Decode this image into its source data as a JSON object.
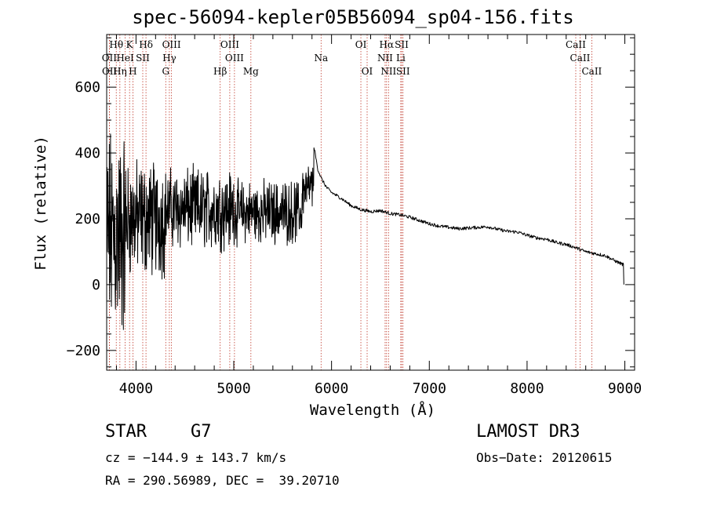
{
  "chart_data": {
    "type": "line",
    "title": "spec-56094-kepler05B56094_sp04-156.fits",
    "xlabel": "Wavelength (Å)",
    "ylabel": "Flux (relative)",
    "xlim": [
      3700,
      9100
    ],
    "ylim": [
      -260,
      760
    ],
    "xticks": [
      4000,
      5000,
      6000,
      7000,
      8000,
      9000
    ],
    "yticks": [
      -200,
      0,
      200,
      400,
      600
    ],
    "continuum": [
      [
        5820,
        420
      ],
      [
        5860,
        350
      ],
      [
        5900,
        320
      ],
      [
        5950,
        295
      ],
      [
        6000,
        280
      ],
      [
        6100,
        262
      ],
      [
        6200,
        240
      ],
      [
        6300,
        228
      ],
      [
        6400,
        222
      ],
      [
        6500,
        225
      ],
      [
        6600,
        216
      ],
      [
        6700,
        212
      ],
      [
        6800,
        205
      ],
      [
        6900,
        195
      ],
      [
        7000,
        185
      ],
      [
        7100,
        178
      ],
      [
        7200,
        174
      ],
      [
        7300,
        170
      ],
      [
        7400,
        172
      ],
      [
        7500,
        174
      ],
      [
        7600,
        176
      ],
      [
        7700,
        168
      ],
      [
        7800,
        162
      ],
      [
        7900,
        160
      ],
      [
        8000,
        150
      ],
      [
        8100,
        142
      ],
      [
        8200,
        138
      ],
      [
        8300,
        128
      ],
      [
        8400,
        122
      ],
      [
        8500,
        112
      ],
      [
        8600,
        100
      ],
      [
        8700,
        94
      ],
      [
        8800,
        88
      ],
      [
        8900,
        72
      ],
      [
        8990,
        60
      ]
    ],
    "noisy_segments": [
      {
        "from": 3700,
        "to": 3900,
        "center": 150,
        "amplitude": 480
      },
      {
        "from": 3900,
        "to": 4300,
        "center": 200,
        "amplitude": 260
      },
      {
        "from": 4300,
        "to": 5000,
        "center": 230,
        "amplitude": 180
      },
      {
        "from": 5000,
        "to": 5700,
        "center": 220,
        "amplitude": 140
      },
      {
        "from": 5700,
        "to": 5820,
        "center": 290,
        "amplitude": 120
      }
    ],
    "spectral_lines": [
      {
        "label": "Hθ",
        "x": 3798,
        "row": 0
      },
      {
        "label": "K",
        "x": 3934,
        "row": 0
      },
      {
        "label": "Hδ",
        "x": 4102,
        "row": 0
      },
      {
        "label": "OIII",
        "x": 4363,
        "row": 0
      },
      {
        "label": "OIII",
        "x": 4959,
        "row": 0
      },
      {
        "label": "OI",
        "x": 6300,
        "row": 0
      },
      {
        "label": "Hα",
        "x": 6563,
        "row": 0
      },
      {
        "label": "SII",
        "x": 6717,
        "row": 0
      },
      {
        "label": "CaII",
        "x": 8498,
        "row": 0
      },
      {
        "label": "OII",
        "x": 3727,
        "row": 1
      },
      {
        "label": "HeI",
        "x": 3889,
        "row": 1
      },
      {
        "label": "SII",
        "x": 4069,
        "row": 1
      },
      {
        "label": "Hγ",
        "x": 4341,
        "row": 1
      },
      {
        "label": "OIII",
        "x": 5007,
        "row": 1
      },
      {
        "label": "Na",
        "x": 5893,
        "row": 1
      },
      {
        "label": "NII",
        "x": 6548,
        "row": 1
      },
      {
        "label": "Li",
        "x": 6708,
        "row": 1
      },
      {
        "label": "CaII",
        "x": 8542,
        "row": 1
      },
      {
        "label": "OII",
        "x": 3729,
        "row": 2
      },
      {
        "label": "Hη",
        "x": 3835,
        "row": 2
      },
      {
        "label": "H",
        "x": 3968,
        "row": 2
      },
      {
        "label": "G",
        "x": 4304,
        "row": 2
      },
      {
        "label": "Hβ",
        "x": 4861,
        "row": 2
      },
      {
        "label": "Mg",
        "x": 5175,
        "row": 2
      },
      {
        "label": "OI",
        "x": 6364,
        "row": 2
      },
      {
        "label": "NII",
        "x": 6583,
        "row": 2
      },
      {
        "label": "SII",
        "x": 6731,
        "row": 2
      },
      {
        "label": "CaII",
        "x": 8662,
        "row": 2
      }
    ],
    "line_color": "#000000",
    "marker_color": "#c0392b"
  },
  "info": {
    "class": "STAR",
    "subclass": "G7",
    "survey": "LAMOST DR3",
    "cz": "cz = −144.9 ± 143.7 km/s",
    "obs_date": "Obs−Date: 20120615",
    "coords": "RA = 290.56989, DEC =  39.20710"
  }
}
